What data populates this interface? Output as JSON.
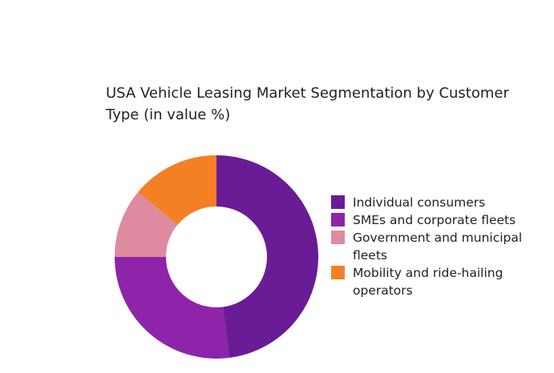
{
  "chart_data": {
    "type": "pie",
    "variant": "donut",
    "title": "USA Vehicle Leasing Market Segmentation by Customer Type (in value %)",
    "categories": [
      "Individual consumers",
      "SMEs and corporate fleets",
      "Government and municipal fleets",
      "Mobility and ride-hailing operators"
    ],
    "values": [
      48,
      27,
      11,
      14
    ],
    "colors": [
      "#6a1b96",
      "#8e24aa",
      "#de8aa0",
      "#f57f23"
    ],
    "legend": "right"
  }
}
